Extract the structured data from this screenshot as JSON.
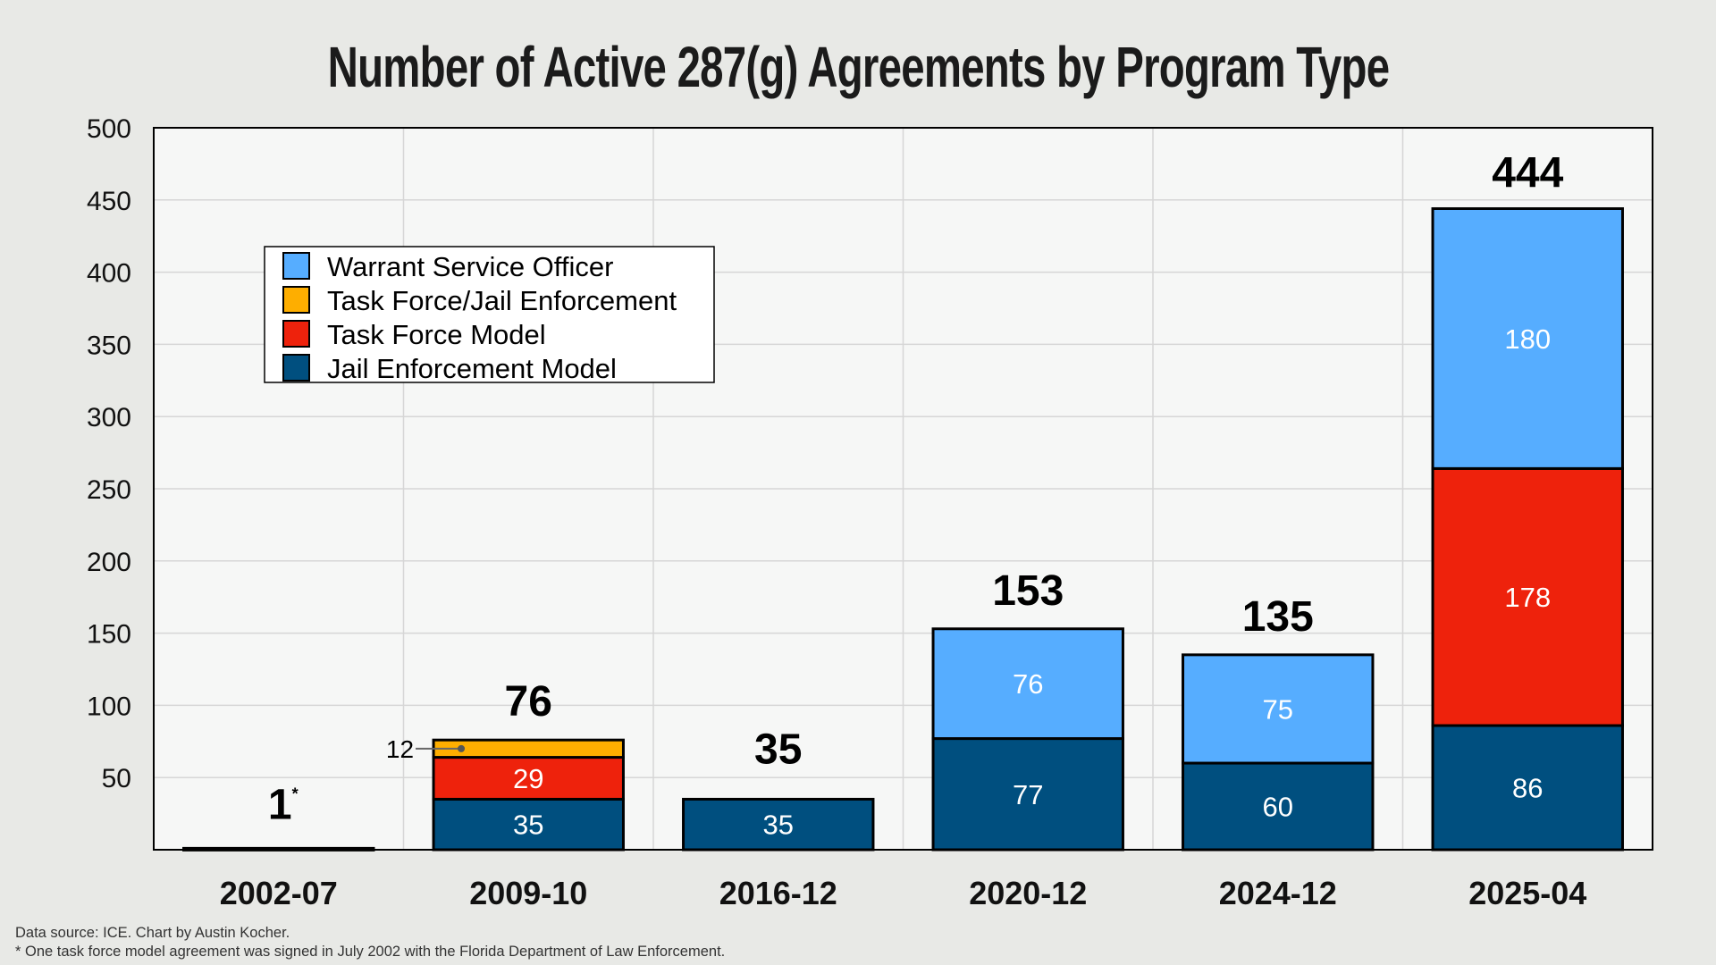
{
  "chart_data": {
    "type": "bar",
    "stacked": true,
    "title": "Number of Active 287(g) Agreements by Program Type",
    "xlabel": "",
    "ylabel": "",
    "ylim": [
      0,
      500
    ],
    "yticks": [
      50,
      100,
      150,
      200,
      250,
      300,
      350,
      400,
      450,
      500
    ],
    "grid": true,
    "legend_position": "top-left",
    "categories": [
      "2002-07",
      "2009-10",
      "2016-12",
      "2020-12",
      "2024-12",
      "2025-04"
    ],
    "series": [
      {
        "name": "Jail Enforcement Model",
        "color": "#004f7f",
        "values": [
          0,
          35,
          35,
          77,
          60,
          86
        ]
      },
      {
        "name": "Task Force Model",
        "color": "#ee220c",
        "values": [
          1,
          29,
          0,
          0,
          0,
          178
        ]
      },
      {
        "name": "Task Force/Jail Enforcement",
        "color": "#feae00",
        "values": [
          0,
          12,
          0,
          0,
          0,
          0
        ]
      },
      {
        "name": "Warrant Service Officer",
        "color": "#56adff",
        "values": [
          0,
          0,
          0,
          76,
          75,
          180
        ]
      }
    ],
    "legend_order": [
      "Warrant Service Officer",
      "Task Force/Jail Enforcement",
      "Task Force Model",
      "Jail Enforcement Model"
    ],
    "totals": [
      "1",
      "76",
      "35",
      "153",
      "135",
      "444"
    ],
    "total_annotations": [
      "*",
      "",
      "",
      "",
      "",
      ""
    ],
    "callouts": [
      {
        "category": "2009-10",
        "series": "Task Force/Jail Enforcement",
        "text": "12"
      }
    ]
  },
  "footer": {
    "source": "Data source: ICE. Chart by Austin Kocher.",
    "note": "* One task force model agreement was signed in July 2002 with the Florida Department of Law Enforcement."
  }
}
